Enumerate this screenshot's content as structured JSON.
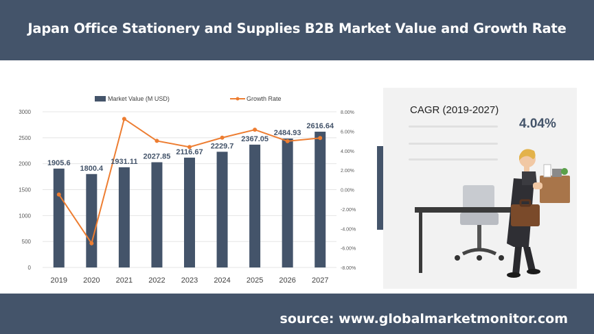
{
  "header": {
    "title": "Japan Office Stationery and Supplies B2B Market Value and Growth Rate"
  },
  "footer": {
    "source": "source: www.globalmarketmonitor.com"
  },
  "cagr": {
    "label": "CAGR (2019-2027)",
    "value": "4.04%"
  },
  "colors": {
    "bar": "#44546a",
    "line": "#ed7d31",
    "header_bg": "#44546a"
  },
  "illustration": {
    "name": "office-worker-carrying-box-illustration"
  },
  "chart_data": {
    "type": "bar",
    "categories": [
      "2019",
      "2020",
      "2021",
      "2022",
      "2023",
      "2024",
      "2025",
      "2026",
      "2027"
    ],
    "series": [
      {
        "name": "Market Value (M USD)",
        "type": "bar",
        "axis": "left",
        "values": [
          1905.6,
          1800.4,
          1931.11,
          2027.85,
          2116.67,
          2229.7,
          2367.05,
          2484.93,
          2616.64
        ],
        "labels": [
          "1905.6",
          "1800.4",
          "1931.11",
          "2027.85",
          "2116.67",
          "2229.7",
          "2367.05",
          "2484.93",
          "2616.64"
        ]
      },
      {
        "name": "Growth Rate",
        "type": "line",
        "axis": "right",
        "values": [
          -0.5,
          -5.52,
          7.27,
          5.01,
          4.38,
          5.34,
          6.16,
          4.98,
          5.3
        ]
      }
    ],
    "y_left": {
      "min": 0,
      "max": 3000,
      "step": 500,
      "ticks": [
        "0",
        "500",
        "1000",
        "1500",
        "2000",
        "2500",
        "3000"
      ]
    },
    "y_right": {
      "min": -8,
      "max": 8,
      "step": 2,
      "ticks": [
        "-8.00%",
        "-6.00%",
        "-4.00%",
        "-2.00%",
        "0.00%",
        "2.00%",
        "4.00%",
        "6.00%",
        "8.00%"
      ]
    },
    "grid": true,
    "legend_position": "top"
  }
}
